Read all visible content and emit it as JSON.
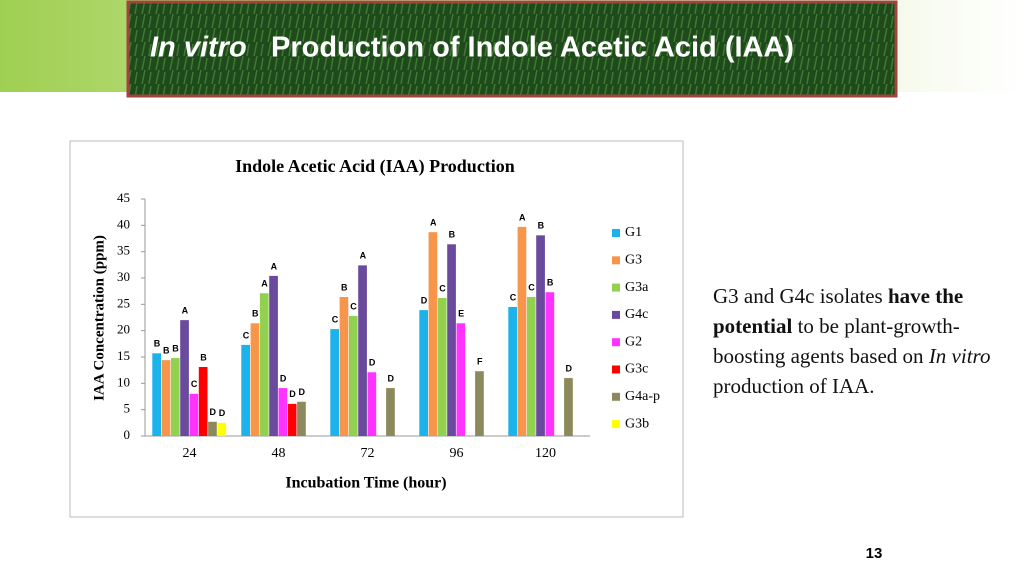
{
  "slide": {
    "title_italic": "In vitro",
    "title_rest": "Production of Indole Acetic Acid (IAA)",
    "text_parts": [
      "G3 and G4c isolates ",
      "have the potential",
      " to be plant-growth-boosting agents based on ",
      "In vitro",
      " production of IAA."
    ],
    "page_number": "13"
  },
  "chart_data": {
    "type": "bar",
    "title": "Indole Acetic Acid (IAA) Production",
    "x_label": "Incubation Time (hour)",
    "y_label": "IAA Concentration (ppm)",
    "categories": [
      "24",
      "48",
      "72",
      "96",
      "120"
    ],
    "ylim": [
      0,
      45
    ],
    "yticks": [
      0,
      5,
      10,
      15,
      20,
      25,
      30,
      35,
      40,
      45
    ],
    "grid": false,
    "legend": "right",
    "series": [
      {
        "name": "G1",
        "color": "#1cb2ec",
        "values": [
          15.7,
          17.3,
          20.3,
          23.9,
          24.5
        ],
        "letters": [
          "B",
          "C",
          "C",
          "D",
          "C"
        ]
      },
      {
        "name": "G3",
        "color": "#f7964a",
        "values": [
          14.4,
          21.4,
          26.4,
          38.7,
          39.7
        ],
        "letters": [
          "B",
          "B",
          "B",
          "A",
          "A"
        ]
      },
      {
        "name": "G3a",
        "color": "#92d050",
        "values": [
          14.8,
          27.1,
          22.8,
          26.2,
          26.4
        ],
        "letters": [
          "B",
          "A",
          "C",
          "C",
          "C"
        ]
      },
      {
        "name": "G4c",
        "color": "#6a4a9c",
        "values": [
          22,
          30.4,
          32.4,
          36.4,
          38.1
        ],
        "letters": [
          "A",
          "A",
          "A",
          "B",
          "B"
        ]
      },
      {
        "name": "G2",
        "color": "#ff33ff",
        "values": [
          8,
          9.1,
          12.1,
          21.4,
          27.3
        ],
        "letters": [
          "C",
          "D",
          "D",
          "E",
          "B"
        ]
      },
      {
        "name": "G3c",
        "color": "#ff0000",
        "values": [
          13.1,
          6.1,
          null,
          null,
          null
        ],
        "letters": [
          "B",
          "D",
          null,
          null,
          null
        ]
      },
      {
        "name": "G4a-p",
        "color": "#8c8a5c",
        "values": [
          2.7,
          6.5,
          9.1,
          12.3,
          11
        ],
        "letters": [
          "D",
          "D",
          "D",
          "F",
          "D"
        ]
      },
      {
        "name": "G3b",
        "color": "#ffff00",
        "values": [
          2.5,
          null,
          null,
          null,
          null
        ],
        "letters": [
          "D",
          null,
          null,
          null,
          null
        ]
      }
    ]
  }
}
